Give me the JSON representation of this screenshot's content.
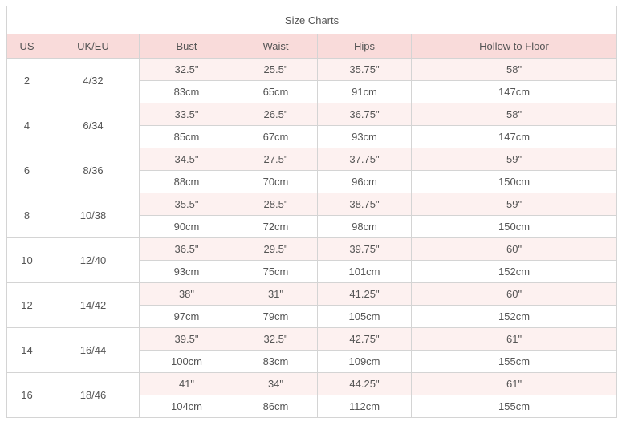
{
  "title": "Size Charts",
  "columns": [
    "US",
    "UK/EU",
    "Bust",
    "Waist",
    "Hips",
    "Hollow to Floor"
  ],
  "rows": [
    {
      "us": "2",
      "ukeu": "4/32",
      "in": [
        "32.5\"",
        "25.5\"",
        "35.75\"",
        "58\""
      ],
      "cm": [
        "83cm",
        "65cm",
        "91cm",
        "147cm"
      ]
    },
    {
      "us": "4",
      "ukeu": "6/34",
      "in": [
        "33.5\"",
        "26.5\"",
        "36.75\"",
        "58\""
      ],
      "cm": [
        "85cm",
        "67cm",
        "93cm",
        "147cm"
      ]
    },
    {
      "us": "6",
      "ukeu": "8/36",
      "in": [
        "34.5\"",
        "27.5\"",
        "37.75\"",
        "59\""
      ],
      "cm": [
        "88cm",
        "70cm",
        "96cm",
        "150cm"
      ]
    },
    {
      "us": "8",
      "ukeu": "10/38",
      "in": [
        "35.5\"",
        "28.5\"",
        "38.75\"",
        "59\""
      ],
      "cm": [
        "90cm",
        "72cm",
        "98cm",
        "150cm"
      ]
    },
    {
      "us": "10",
      "ukeu": "12/40",
      "in": [
        "36.5\"",
        "29.5\"",
        "39.75\"",
        "60\""
      ],
      "cm": [
        "93cm",
        "75cm",
        "101cm",
        "152cm"
      ]
    },
    {
      "us": "12",
      "ukeu": "14/42",
      "in": [
        "38\"",
        "31\"",
        "41.25\"",
        "60\""
      ],
      "cm": [
        "97cm",
        "79cm",
        "105cm",
        "152cm"
      ]
    },
    {
      "us": "14",
      "ukeu": "16/44",
      "in": [
        "39.5\"",
        "32.5\"",
        "42.75\"",
        "61\""
      ],
      "cm": [
        "100cm",
        "83cm",
        "109cm",
        "155cm"
      ]
    },
    {
      "us": "16",
      "ukeu": "18/46",
      "in": [
        "41\"",
        "34\"",
        "44.25\"",
        "61\""
      ],
      "cm": [
        "104cm",
        "86cm",
        "112cm",
        "155cm"
      ]
    }
  ],
  "colors": {
    "header_bg": "#f9dbda",
    "alt_row_bg": "#fdf1f0",
    "border": "#d4d4d4",
    "text": "#555555",
    "title_text": "#1a1a1a"
  }
}
